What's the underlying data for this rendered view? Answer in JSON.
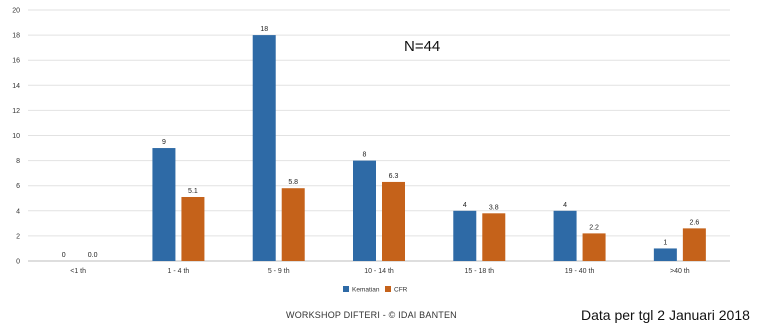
{
  "chart_data": {
    "type": "bar",
    "categories": [
      "<1 th",
      "1 - 4 th",
      "5 - 9 th",
      "10 - 14 th",
      "15 - 18 th",
      "19 - 40 th",
      ">40 th"
    ],
    "series": [
      {
        "name": "Kematian",
        "values": [
          0,
          9,
          18,
          8,
          4,
          4,
          1
        ],
        "labels": [
          "0",
          "9",
          "18",
          "8",
          "4",
          "4",
          "1"
        ],
        "color": "#2e6aa6"
      },
      {
        "name": "CFR",
        "values": [
          0.0,
          5.1,
          5.8,
          6.3,
          3.8,
          2.2,
          2.6
        ],
        "labels": [
          "0.0",
          "5.1",
          "5.8",
          "6.3",
          "3.8",
          "2.2",
          "2.6"
        ],
        "color": "#c5621a"
      }
    ],
    "ylim": [
      0,
      20
    ],
    "yticks": [
      "0",
      "2",
      "4",
      "6",
      "8",
      "10",
      "12",
      "14",
      "16",
      "18",
      "20"
    ],
    "grid": true,
    "legend": "bottom-center",
    "annotation": "N=44"
  },
  "footer": {
    "workshop": "WORKSHOP DIFTERI - © IDAI BANTEN",
    "date_note": "Data per tgl 2 Januari 2018"
  }
}
